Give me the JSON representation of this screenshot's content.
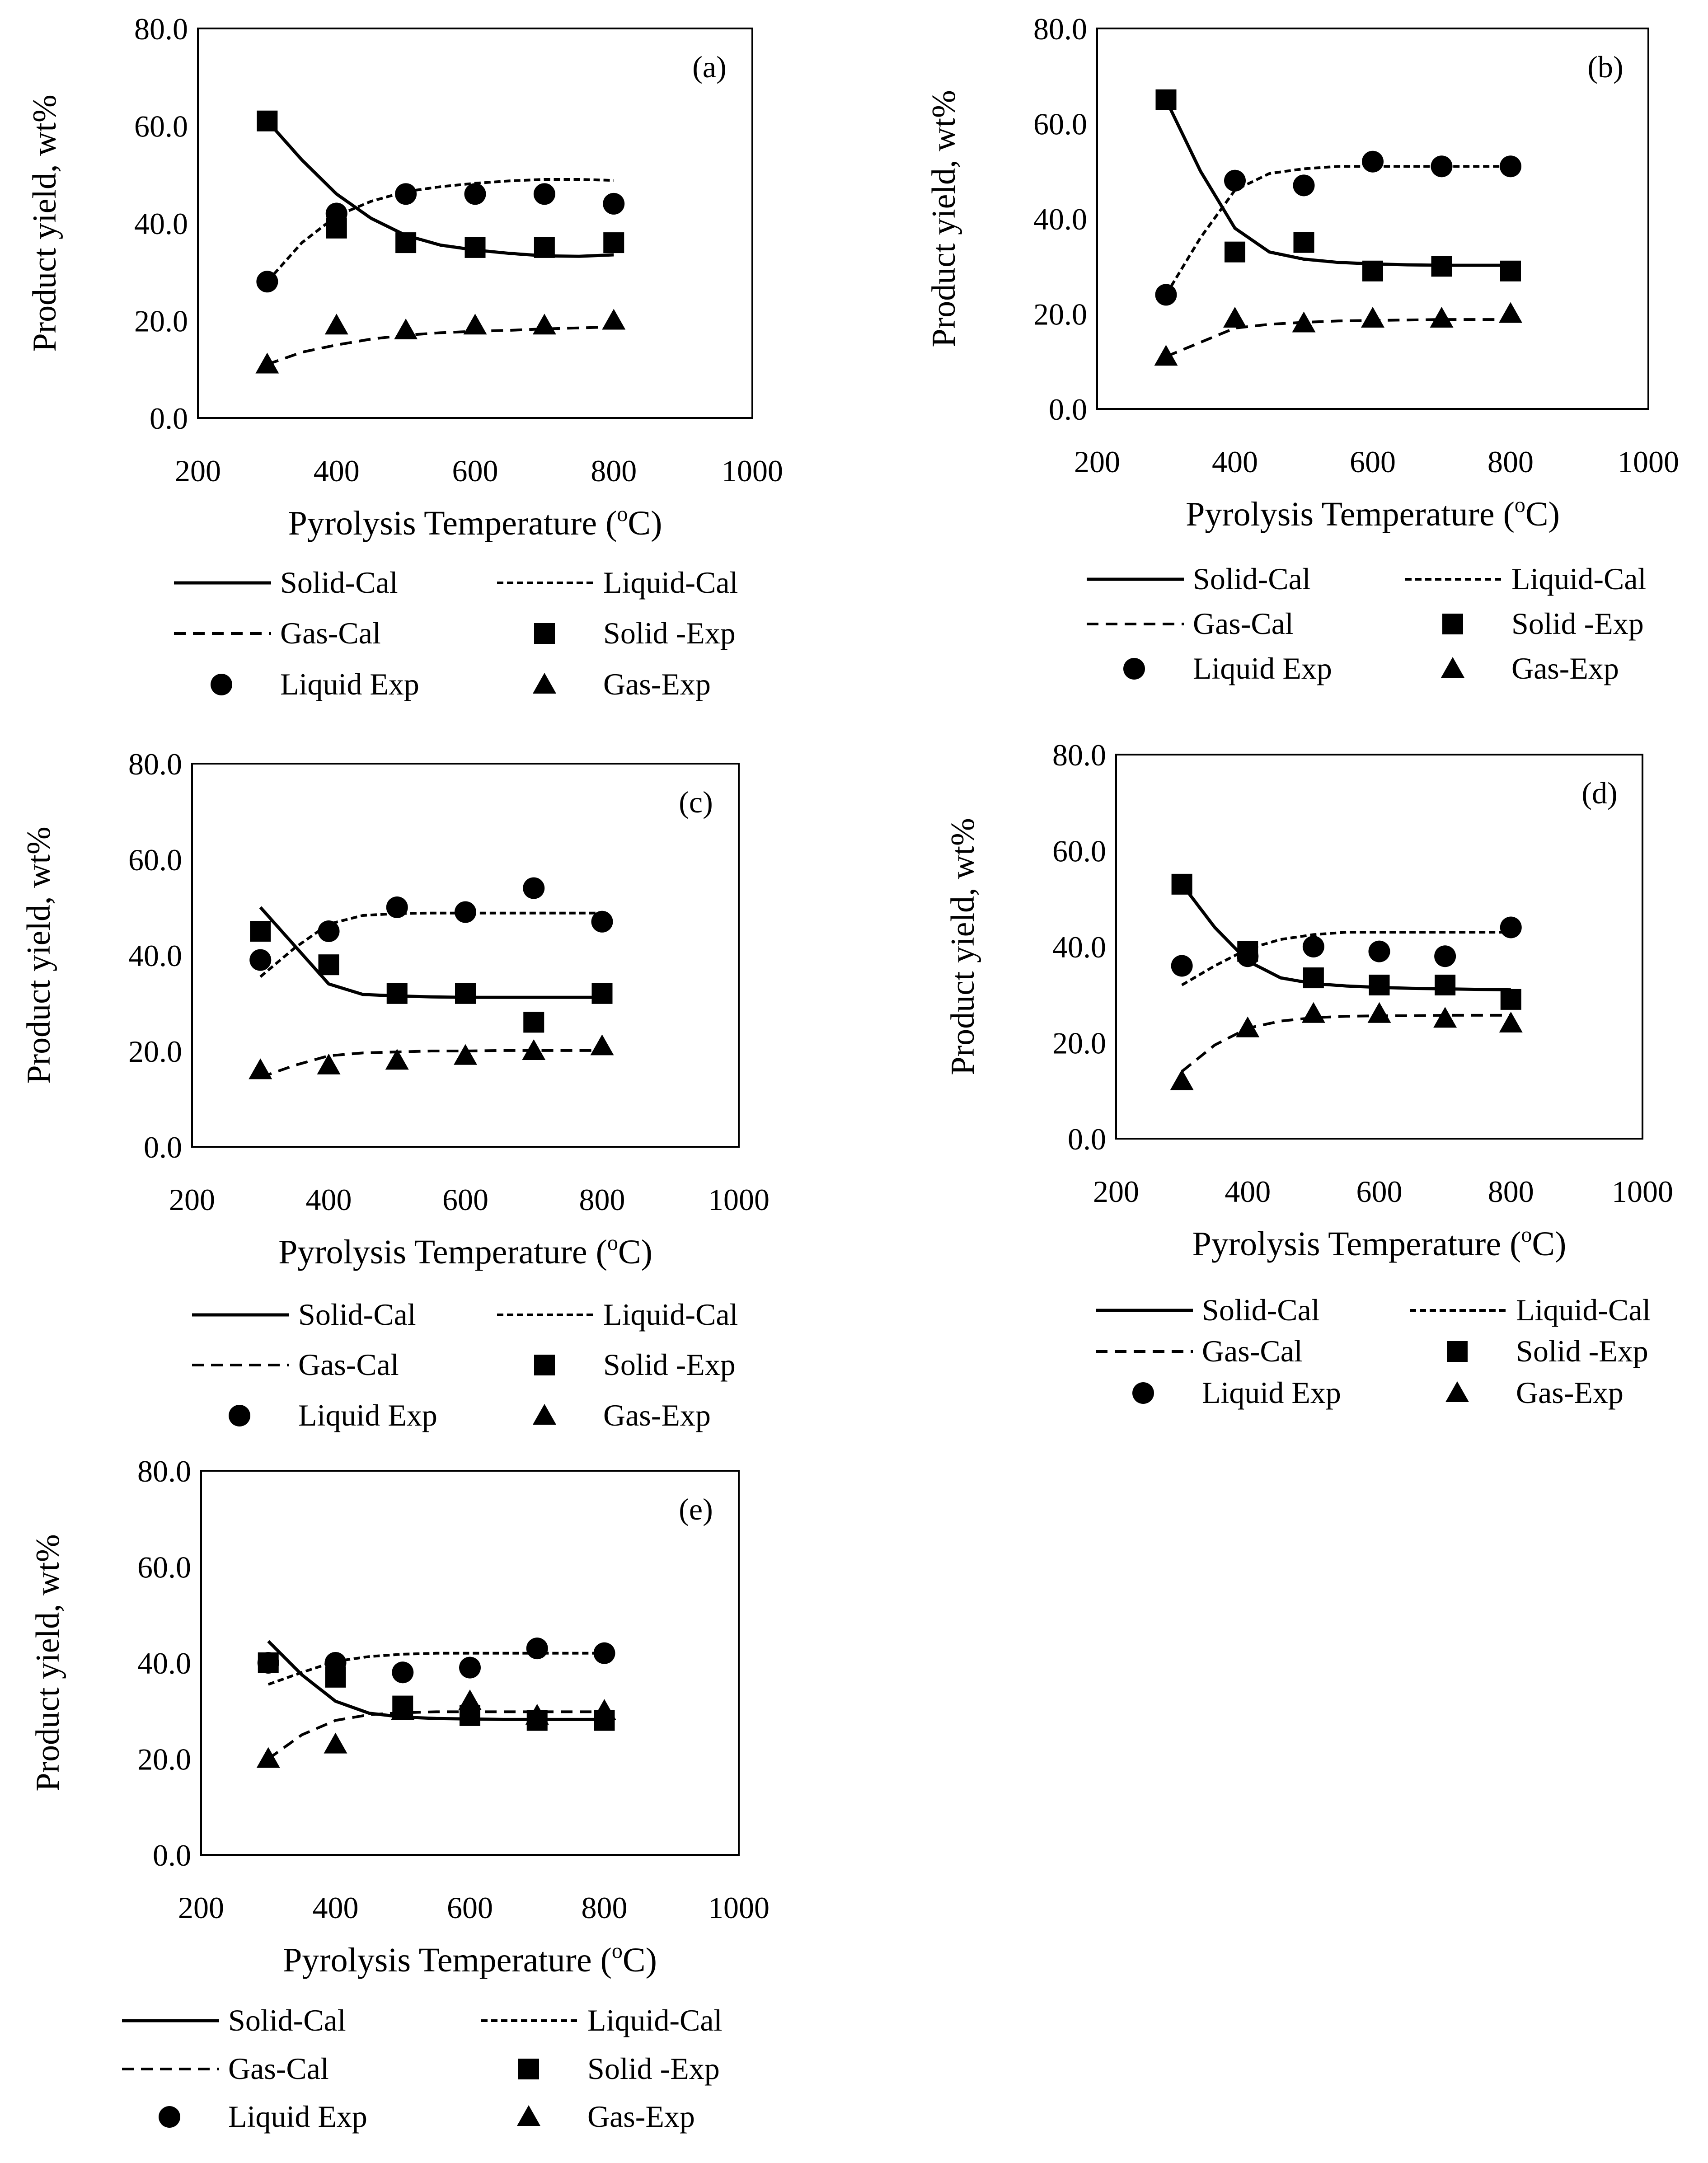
{
  "legend_labels": {
    "solid_cal": "Solid-Cal",
    "liquid_cal": "Liquid-Cal",
    "gas_cal": "Gas-Cal",
    "solid_exp": "Solid -Exp",
    "liquid_exp": "Liquid Exp",
    "gas_exp": "Gas-Exp"
  },
  "colors": {
    "ink": "#000000",
    "background": "#ffffff"
  },
  "chart_data": [
    {
      "panel_label": "(a)",
      "type": "scatter",
      "xlabel": "Pyrolysis Temperature (",
      "xlabel_sup": "o",
      "xlabel_suffix": "C)",
      "ylabel": "Product yield, wt%",
      "xlim": [
        200,
        1000
      ],
      "ylim": [
        0,
        80
      ],
      "xticks": [
        200,
        400,
        600,
        800,
        1000
      ],
      "yticks": [
        "0.0",
        "20.0",
        "40.0",
        "60.0",
        "80.0"
      ],
      "x": [
        300,
        400,
        500,
        600,
        700,
        800
      ],
      "experimental": {
        "solid": [
          61,
          39,
          36,
          35,
          35,
          36
        ],
        "liquid": [
          28,
          42,
          46,
          46,
          46,
          44
        ],
        "gas": [
          11,
          19,
          18,
          19,
          19,
          20
        ]
      },
      "calculated": {
        "x": [
          300,
          350,
          400,
          450,
          500,
          550,
          600,
          650,
          700,
          750,
          800
        ],
        "solid": [
          61,
          53,
          46,
          41,
          37.5,
          35.5,
          34.5,
          33.8,
          33.3,
          33.2,
          33.5
        ],
        "liquid": [
          28,
          36,
          41.5,
          44.5,
          46.5,
          47.5,
          48.2,
          48.7,
          49,
          49,
          48.8
        ],
        "gas": [
          11,
          13.5,
          15,
          16.2,
          17,
          17.5,
          17.8,
          18,
          18.3,
          18.5,
          18.7
        ]
      }
    },
    {
      "panel_label": "(b)",
      "type": "scatter",
      "xlabel": "Pyrolysis Temperature (",
      "xlabel_sup": "o",
      "xlabel_suffix": "C)",
      "ylabel": "Product yield, wt%",
      "xlim": [
        200,
        1000
      ],
      "ylim": [
        0,
        80
      ],
      "xticks": [
        200,
        400,
        600,
        800,
        1000
      ],
      "yticks": [
        "0.0",
        "20.0",
        "40.0",
        "60.0",
        "80.0"
      ],
      "x": [
        300,
        400,
        500,
        600,
        700,
        800
      ],
      "experimental": {
        "solid": [
          65,
          33,
          35,
          29,
          30,
          29
        ],
        "liquid": [
          24,
          48,
          47,
          52,
          51,
          51
        ],
        "gas": [
          11,
          19,
          18,
          19,
          19,
          20
        ]
      },
      "calculated": {
        "x": [
          300,
          350,
          400,
          450,
          500,
          550,
          600,
          650,
          700,
          750,
          800
        ],
        "solid": [
          65,
          50,
          38,
          33,
          31.5,
          30.8,
          30.5,
          30.3,
          30.2,
          30.2,
          30.2
        ],
        "liquid": [
          24,
          36,
          46,
          49.5,
          50.5,
          51,
          51,
          51,
          51,
          51,
          51
        ],
        "gas": [
          11,
          14,
          17,
          17.8,
          18.2,
          18.5,
          18.6,
          18.7,
          18.8,
          18.8,
          18.8
        ]
      }
    },
    {
      "panel_label": "(c)",
      "type": "scatter",
      "xlabel": "Pyrolysis Temperature (",
      "xlabel_sup": "o",
      "xlabel_suffix": "C)",
      "ylabel": "Product yield, wt%",
      "xlim": [
        200,
        1000
      ],
      "ylim": [
        0,
        80
      ],
      "xticks": [
        200,
        400,
        600,
        800,
        1000
      ],
      "yticks": [
        "0.0",
        "20.0",
        "40.0",
        "60.0",
        "80.0"
      ],
      "x": [
        300,
        400,
        500,
        600,
        700,
        800
      ],
      "experimental": {
        "solid": [
          45,
          38,
          32,
          32,
          26,
          32
        ],
        "liquid": [
          39,
          45,
          50,
          49,
          54,
          47
        ],
        "gas": [
          16,
          17,
          18,
          19,
          20,
          21
        ]
      },
      "calculated": {
        "x": [
          300,
          350,
          400,
          450,
          500,
          550,
          600,
          650,
          700,
          750,
          800
        ],
        "solid": [
          50,
          42,
          34,
          31.8,
          31.5,
          31.3,
          31.2,
          31.2,
          31.2,
          31.2,
          31.2
        ],
        "liquid": [
          35.5,
          41.5,
          46.5,
          48.3,
          48.7,
          48.8,
          48.8,
          48.8,
          48.8,
          48.8,
          48.8
        ],
        "gas": [
          14.5,
          17,
          19,
          19.6,
          19.8,
          20,
          20,
          20.1,
          20.1,
          20.1,
          20.1
        ]
      }
    },
    {
      "panel_label": "(d)",
      "type": "scatter",
      "xlabel": "Pyrolysis Temperature (",
      "xlabel_sup": "o",
      "xlabel_suffix": "C)",
      "ylabel": "Product yield, wt%",
      "xlim": [
        200,
        1000
      ],
      "ylim": [
        0,
        80
      ],
      "xticks": [
        200,
        400,
        600,
        800,
        1000
      ],
      "yticks": [
        "0.0",
        "20.0",
        "40.0",
        "60.0",
        "80.0"
      ],
      "x": [
        300,
        400,
        500,
        600,
        700,
        800
      ],
      "experimental": {
        "solid": [
          53,
          39,
          33.5,
          32,
          32,
          29
        ],
        "liquid": [
          36,
          38,
          40,
          39,
          38,
          44
        ],
        "gas": [
          12,
          23,
          26,
          26,
          25,
          24
        ]
      },
      "calculated": {
        "x": [
          300,
          350,
          400,
          450,
          500,
          550,
          600,
          650,
          700,
          750,
          800
        ],
        "solid": [
          53,
          44,
          37,
          33.5,
          32.3,
          31.8,
          31.5,
          31.3,
          31.2,
          31.1,
          31
        ],
        "liquid": [
          32,
          36,
          39.5,
          41.5,
          42.5,
          43,
          43,
          43,
          43,
          43,
          43
        ],
        "gas": [
          14,
          19.5,
          23,
          24.5,
          25.2,
          25.5,
          25.6,
          25.6,
          25.7,
          25.7,
          25.7
        ]
      }
    },
    {
      "panel_label": "(e)",
      "type": "scatter",
      "xlabel": "Pyrolysis Temperature (",
      "xlabel_sup": "o",
      "xlabel_suffix": "C)",
      "ylabel": "Product yield, wt%",
      "xlim": [
        200,
        1000
      ],
      "ylim": [
        0,
        80
      ],
      "xticks": [
        200,
        400,
        600,
        800,
        1000
      ],
      "yticks": [
        "0.0",
        "20.0",
        "40.0",
        "60.0",
        "80.0"
      ],
      "x": [
        300,
        400,
        500,
        600,
        700,
        800
      ],
      "experimental": {
        "solid": [
          40,
          37,
          31,
          29,
          28,
          28
        ],
        "liquid": [
          40,
          40,
          38,
          39,
          43,
          42
        ],
        "gas": [
          20,
          23,
          30,
          32,
          29,
          30
        ]
      },
      "calculated": {
        "x": [
          300,
          350,
          400,
          450,
          500,
          550,
          600,
          650,
          700,
          750,
          800
        ],
        "solid": [
          44.5,
          37.5,
          32,
          29.5,
          28.7,
          28.4,
          28.3,
          28.2,
          28.2,
          28.2,
          28.2
        ],
        "liquid": [
          35.5,
          38,
          40.3,
          41.3,
          41.8,
          42,
          42,
          42,
          42,
          42,
          42
        ],
        "gas": [
          20,
          25,
          28,
          29.2,
          29.6,
          29.8,
          29.8,
          29.8,
          29.8,
          29.8,
          29.8
        ]
      }
    }
  ]
}
